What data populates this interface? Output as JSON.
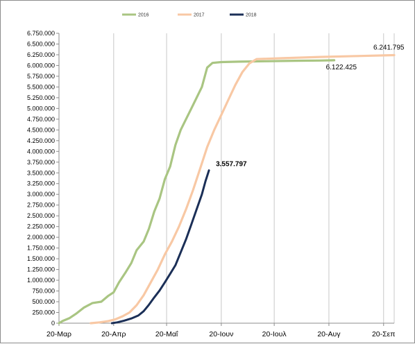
{
  "chart_data": {
    "type": "line",
    "title": "",
    "xlabel": "",
    "ylabel": "",
    "x_ticks": [
      "20-Μαρ",
      "20-Απρ",
      "20-Μαΐ",
      "20-Ιουν",
      "20-Ιουλ",
      "20-Αυγ",
      "20-Σεπ"
    ],
    "y_ticks": [
      "0",
      "250.000",
      "500.000",
      "750.000",
      "1.000.000",
      "1.250.000",
      "1.500.000",
      "1.750.000",
      "2.000.000",
      "2.250.000",
      "2.500.000",
      "2.750.000",
      "3.000.000",
      "3.250.000",
      "3.500.000",
      "3.750.000",
      "4.000.000",
      "4.250.000",
      "4.500.000",
      "4.750.000",
      "5.000.000",
      "5.250.000",
      "5.500.000",
      "5.750.000",
      "6.000.000",
      "6.250.000",
      "6.500.000",
      "6.750.000"
    ],
    "ylim": [
      0,
      6750000
    ],
    "xlim": [
      "20-Mar",
      "26-Sep"
    ],
    "grid": "vertical-major",
    "legend_position": "top",
    "series": [
      {
        "name": "2016",
        "color": "#a9c582",
        "points": [
          [
            "20-Mar",
            0
          ],
          [
            "22-Mar",
            50000
          ],
          [
            "26-Mar",
            120000
          ],
          [
            "30-Mar",
            230000
          ],
          [
            "3-Apr",
            360000
          ],
          [
            "8-Apr",
            470000
          ],
          [
            "13-Apr",
            500000
          ],
          [
            "17-Apr",
            640000
          ],
          [
            "20-Apr",
            720000
          ],
          [
            "23-Apr",
            950000
          ],
          [
            "27-Apr",
            1200000
          ],
          [
            "30-Apr",
            1400000
          ],
          [
            "3-May",
            1700000
          ],
          [
            "7-May",
            1900000
          ],
          [
            "10-May",
            2200000
          ],
          [
            "13-May",
            2600000
          ],
          [
            "16-May",
            2900000
          ],
          [
            "19-May",
            3350000
          ],
          [
            "22-May",
            3650000
          ],
          [
            "25-May",
            4150000
          ],
          [
            "28-May",
            4500000
          ],
          [
            "31-May",
            4750000
          ],
          [
            "3-Jun",
            5000000
          ],
          [
            "6-Jun",
            5250000
          ],
          [
            "9-Jun",
            5500000
          ],
          [
            "12-Jun",
            5950000
          ],
          [
            "15-Jun",
            6060000
          ],
          [
            "20-Jun",
            6080000
          ],
          [
            "30-Jun",
            6090000
          ],
          [
            "15-Jul",
            6100000
          ],
          [
            "1-Aug",
            6110000
          ],
          [
            "15-Aug",
            6115000
          ],
          [
            "23-Aug",
            6122425
          ]
        ]
      },
      {
        "name": "2017",
        "color": "#f8c8a4",
        "points": [
          [
            "7-Apr",
            0
          ],
          [
            "12-Apr",
            20000
          ],
          [
            "17-Apr",
            50000
          ],
          [
            "21-Apr",
            90000
          ],
          [
            "25-Apr",
            160000
          ],
          [
            "29-Apr",
            250000
          ],
          [
            "3-May",
            420000
          ],
          [
            "7-May",
            650000
          ],
          [
            "11-May",
            950000
          ],
          [
            "15-May",
            1250000
          ],
          [
            "19-May",
            1600000
          ],
          [
            "23-May",
            1900000
          ],
          [
            "27-May",
            2250000
          ],
          [
            "31-May",
            2650000
          ],
          [
            "4-Jun",
            3100000
          ],
          [
            "8-Jun",
            3600000
          ],
          [
            "12-Jun",
            4100000
          ],
          [
            "16-Jun",
            4500000
          ],
          [
            "20-Jun",
            4850000
          ],
          [
            "24-Jun",
            5200000
          ],
          [
            "28-Jun",
            5550000
          ],
          [
            "2-Jul",
            5850000
          ],
          [
            "6-Jul",
            6050000
          ],
          [
            "10-Jul",
            6150000
          ],
          [
            "25-Jul",
            6170000
          ],
          [
            "15-Aug",
            6200000
          ],
          [
            "5-Sep",
            6220000
          ],
          [
            "26-Sep",
            6241795
          ]
        ]
      },
      {
        "name": "2018",
        "color": "#1b2f57",
        "points": [
          [
            "19-Apr",
            0
          ],
          [
            "22-Apr",
            20000
          ],
          [
            "26-Apr",
            60000
          ],
          [
            "30-Apr",
            110000
          ],
          [
            "4-May",
            180000
          ],
          [
            "7-May",
            280000
          ],
          [
            "10-May",
            430000
          ],
          [
            "13-May",
            600000
          ],
          [
            "16-May",
            760000
          ],
          [
            "19-May",
            950000
          ],
          [
            "22-May",
            1150000
          ],
          [
            "25-May",
            1350000
          ],
          [
            "28-May",
            1650000
          ],
          [
            "31-May",
            1950000
          ],
          [
            "3-Jun",
            2300000
          ],
          [
            "6-Jun",
            2650000
          ],
          [
            "9-Jun",
            3000000
          ],
          [
            "11-Jun",
            3300000
          ],
          [
            "13-Jun",
            3557797
          ]
        ]
      }
    ],
    "annotations": [
      {
        "text": "6.241.795",
        "series": "2017"
      },
      {
        "text": "6.122.425",
        "series": "2016"
      },
      {
        "text": "3.557.797",
        "series": "2018",
        "bold": true
      }
    ]
  }
}
